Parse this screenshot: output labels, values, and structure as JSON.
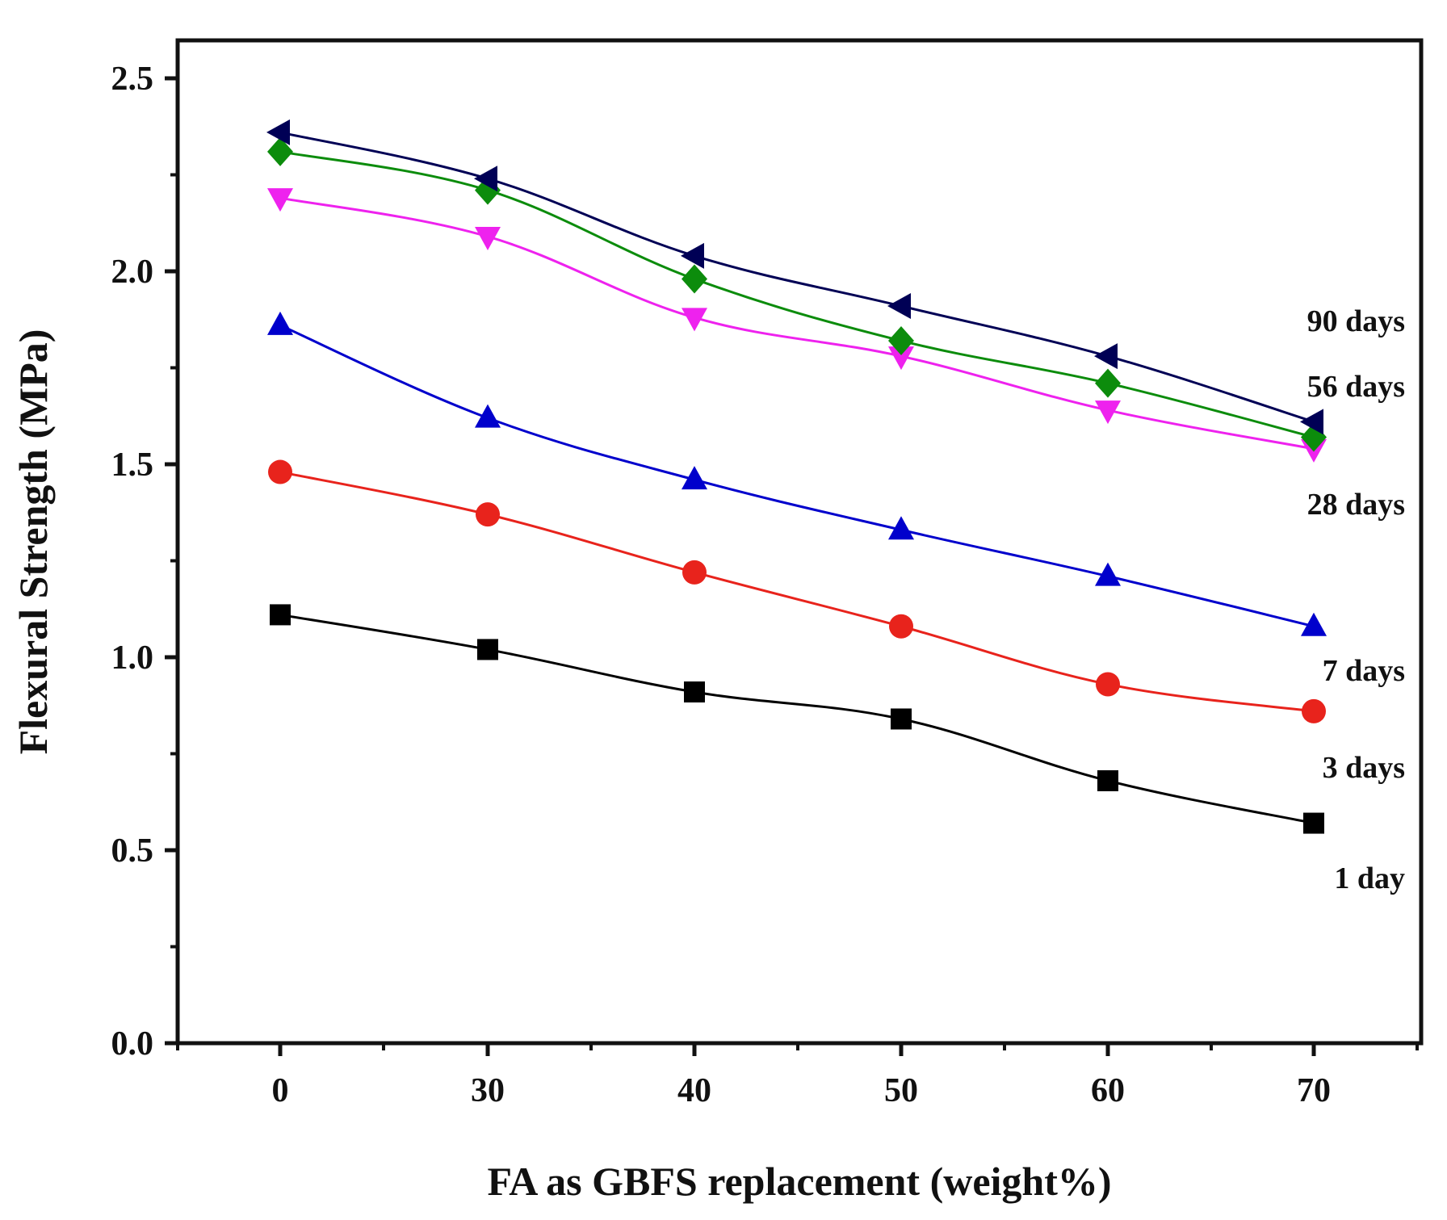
{
  "chart_data": {
    "type": "line",
    "title": "",
    "xlabel": "FA as GBFS replacement (weight%)",
    "ylabel": "Flexural Strength (MPa)",
    "categories": [
      "0",
      "30",
      "40",
      "50",
      "60",
      "70"
    ],
    "ylim": [
      0,
      2.6
    ],
    "yticks": [
      0.0,
      0.5,
      1.0,
      1.5,
      2.0,
      2.5
    ],
    "ytick_labels": [
      "0.0",
      "0.5",
      "1.0",
      "1.5",
      "2.0",
      "2.5"
    ],
    "grid": false,
    "legend": "inline labels at right end of series",
    "series": [
      {
        "name": "1 day",
        "label": "1 day",
        "color": "#000000",
        "marker": "square",
        "values": [
          1.11,
          1.02,
          0.91,
          0.84,
          0.68,
          0.57
        ]
      },
      {
        "name": "3 days",
        "label": "3 days",
        "color": "#e8231c",
        "marker": "circle",
        "values": [
          1.48,
          1.37,
          1.22,
          1.08,
          0.93,
          0.86
        ]
      },
      {
        "name": "7 days",
        "label": "7 days",
        "color": "#0000cc",
        "marker": "triangle-up",
        "values": [
          1.86,
          1.62,
          1.46,
          1.33,
          1.21,
          1.08
        ]
      },
      {
        "name": "28 days",
        "label": "28 days",
        "color": "#ee22ee",
        "marker": "triangle-down",
        "values": [
          2.19,
          2.09,
          1.88,
          1.78,
          1.64,
          1.54
        ]
      },
      {
        "name": "56 days",
        "label": "56 days",
        "color": "#0c8c0c",
        "marker": "diamond",
        "values": [
          2.31,
          2.21,
          1.98,
          1.82,
          1.71,
          1.57
        ]
      },
      {
        "name": "90 days",
        "label": "90 days",
        "color": "#000055",
        "marker": "triangle-left",
        "values": [
          2.36,
          2.24,
          2.04,
          1.91,
          1.78,
          1.61
        ]
      }
    ]
  }
}
